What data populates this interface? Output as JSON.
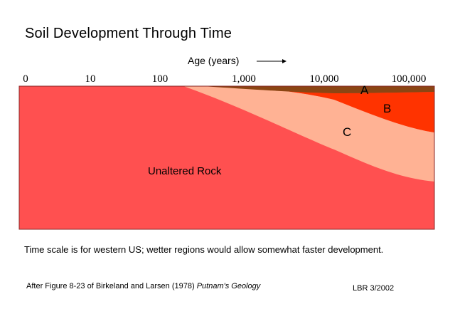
{
  "title": "Soil Development Through Time",
  "axis": {
    "label": "Age (years)",
    "arrow_icon": "right-arrow",
    "ticks": [
      "0",
      "10",
      "100",
      "1,000",
      "10,000",
      "100,000"
    ]
  },
  "layers": {
    "a": {
      "label": "A",
      "color": "#8b4513"
    },
    "b": {
      "label": "B",
      "color": "#ff3300"
    },
    "c": {
      "label": "C",
      "color": "#ffb294"
    },
    "rock": {
      "label": "Unaltered Rock",
      "color": "#ff5050"
    }
  },
  "caption": "Time scale is for western US; wetter regions would allow somewhat faster development.",
  "credit": {
    "prefix": "After Figure 8-23 of Birkeland and Larsen (1978)",
    "book": "Putnam's Geology"
  },
  "initials": "LBR 3/2002"
}
